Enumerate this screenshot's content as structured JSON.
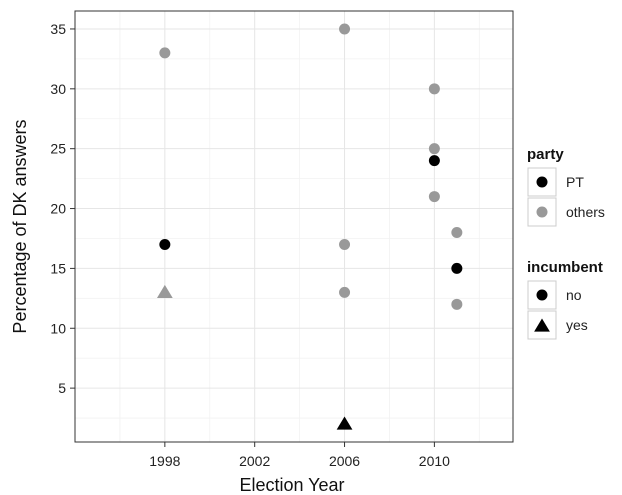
{
  "chart_data": {
    "type": "scatter",
    "xlabel": "Election Year",
    "ylabel": "Percentage of DK answers",
    "xlim": [
      1994,
      2013.5
    ],
    "ylim": [
      0.5,
      36.5
    ],
    "x_ticks": [
      1998,
      2002,
      2006,
      2010
    ],
    "y_ticks": [
      5,
      10,
      15,
      20,
      25,
      30,
      35
    ],
    "grid": true,
    "legend_position": "right",
    "colors": {
      "PT": "#000000",
      "others": "#999999"
    },
    "points": [
      {
        "x": 1998,
        "y": 33,
        "party": "others",
        "incumbent": "no"
      },
      {
        "x": 1998,
        "y": 17,
        "party": "PT",
        "incumbent": "no"
      },
      {
        "x": 1998,
        "y": 13,
        "party": "others",
        "incumbent": "yes"
      },
      {
        "x": 2006,
        "y": 35,
        "party": "others",
        "incumbent": "no"
      },
      {
        "x": 2006,
        "y": 17,
        "party": "others",
        "incumbent": "no"
      },
      {
        "x": 2006,
        "y": 13,
        "party": "others",
        "incumbent": "no"
      },
      {
        "x": 2006,
        "y": 2,
        "party": "PT",
        "incumbent": "yes"
      },
      {
        "x": 2010,
        "y": 30,
        "party": "others",
        "incumbent": "no"
      },
      {
        "x": 2010,
        "y": 25,
        "party": "others",
        "incumbent": "no"
      },
      {
        "x": 2010,
        "y": 24,
        "party": "PT",
        "incumbent": "no"
      },
      {
        "x": 2010,
        "y": 21,
        "party": "others",
        "incumbent": "no"
      },
      {
        "x": 2011,
        "y": 18,
        "party": "others",
        "incumbent": "no"
      },
      {
        "x": 2011,
        "y": 15,
        "party": "PT",
        "incumbent": "no"
      },
      {
        "x": 2011,
        "y": 12,
        "party": "others",
        "incumbent": "no"
      }
    ],
    "legends": [
      {
        "title": "party",
        "items": [
          {
            "label": "PT",
            "shape": "circle",
            "color": "#000000"
          },
          {
            "label": "others",
            "shape": "circle",
            "color": "#999999"
          }
        ]
      },
      {
        "title": "incumbent",
        "items": [
          {
            "label": "no",
            "shape": "circle",
            "color": "#000000"
          },
          {
            "label": "yes",
            "shape": "triangle",
            "color": "#000000"
          }
        ]
      }
    ]
  }
}
